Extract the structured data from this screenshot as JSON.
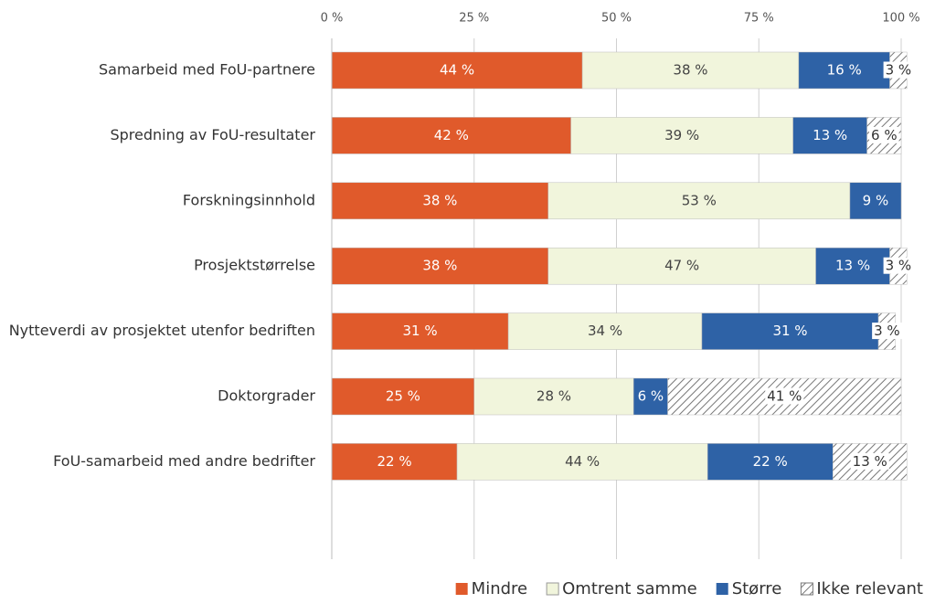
{
  "chart_data": {
    "type": "stacked-barh",
    "categories": [
      "Samarbeid med FoU-partnere",
      "Spredning av FoU-resultater",
      "Forskningsinnhold",
      "Prosjektstørrelse",
      "Nytteverdi av prosjektet utenfor bedriften",
      "Doktorgrader",
      "FoU-samarbeid med andre bedrifter"
    ],
    "series": [
      {
        "name": "Mindre",
        "color": "#e05a2b",
        "values": [
          44,
          42,
          38,
          38,
          31,
          25,
          22
        ],
        "value_labels": [
          "44 %",
          "42 %",
          "38 %",
          "38 %",
          "31 %",
          "25 %",
          "22 %"
        ]
      },
      {
        "name": "Omtrent samme",
        "color": "#f1f5dc",
        "values": [
          38,
          39,
          53,
          47,
          34,
          28,
          44
        ],
        "value_labels": [
          "38 %",
          "39 %",
          "53 %",
          "47 %",
          "34 %",
          "28 %",
          "44 %"
        ]
      },
      {
        "name": "Større",
        "color": "#2e62a6",
        "values": [
          16,
          13,
          9,
          13,
          31,
          6,
          22
        ],
        "value_labels": [
          "16 %",
          "13 %",
          "9 %",
          "13 %",
          "31 %",
          "6 %",
          "22 %"
        ]
      },
      {
        "name": "Ikke relevant",
        "color": "#7f7f7f",
        "hatch": true,
        "values": [
          3,
          6,
          null,
          3,
          3,
          41,
          13
        ],
        "value_labels": [
          "3 %",
          "6 %",
          null,
          "3 %",
          "3 %",
          "41 %",
          "13 %"
        ]
      }
    ],
    "xlim": [
      0,
      100
    ],
    "xticks": [
      {
        "value": 0,
        "label": "0 %"
      },
      {
        "value": 25,
        "label": "25 %"
      },
      {
        "value": 50,
        "label": "50 %"
      },
      {
        "value": 75,
        "label": "75 %"
      },
      {
        "value": 100,
        "label": "100 %"
      }
    ],
    "grid": true,
    "legend": "bottom-right"
  }
}
